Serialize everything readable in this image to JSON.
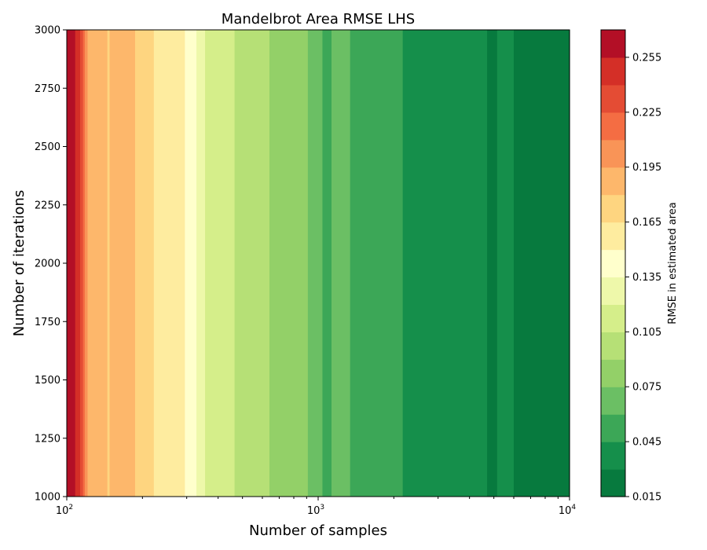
{
  "chart_data": {
    "type": "heatmap",
    "title": "Mandelbrot Area RMSE LHS",
    "xlabel": "Number of samples",
    "ylabel": "Number of iterations",
    "xscale": "log",
    "xlim": [
      100,
      10000
    ],
    "ylim": [
      1000,
      3000
    ],
    "x_ticks": [
      {
        "value": 100,
        "base": "10",
        "exp": "2"
      },
      {
        "value": 1000,
        "base": "10",
        "exp": "3"
      },
      {
        "value": 10000,
        "base": "10",
        "exp": "4"
      }
    ],
    "y_ticks": [
      1000,
      1250,
      1500,
      1750,
      2000,
      2250,
      2500,
      2750,
      3000
    ],
    "y_tick_labels": [
      "1000",
      "1250",
      "1500",
      "1750",
      "2000",
      "2250",
      "2500",
      "2750",
      "3000"
    ],
    "colorbar": {
      "label": "RMSE in estimated area",
      "min": 0.015,
      "max": 0.27,
      "levels": [
        0.015,
        0.03,
        0.045,
        0.06,
        0.075,
        0.09,
        0.105,
        0.12,
        0.135,
        0.15,
        0.165,
        0.18,
        0.195,
        0.21,
        0.225,
        0.24,
        0.255,
        0.27
      ],
      "ticks": [
        0.015,
        0.045,
        0.075,
        0.105,
        0.135,
        0.165,
        0.195,
        0.225,
        0.255
      ],
      "tick_labels": [
        "0.015",
        "0.045",
        "0.075",
        "0.105",
        "0.135",
        "0.165",
        "0.195",
        "0.225",
        "0.255"
      ],
      "colors": [
        "#077a3e",
        "#158f4b",
        "#3ca757",
        "#6bbf64",
        "#93d068",
        "#b6e076",
        "#d5ee8a",
        "#eef8aa",
        "#ffffcc",
        "#feec9f",
        "#fed580",
        "#fdb76b",
        "#f99457",
        "#f46d43",
        "#e44c34",
        "#d42f27",
        "#b30f26"
      ]
    },
    "bands": [
      {
        "x0": 100,
        "x1": 108,
        "level": 16
      },
      {
        "x0": 108,
        "x1": 113,
        "level": 15
      },
      {
        "x0": 113,
        "x1": 116,
        "level": 14
      },
      {
        "x0": 116,
        "x1": 118,
        "level": 13
      },
      {
        "x0": 118,
        "x1": 121,
        "level": 12
      },
      {
        "x0": 121,
        "x1": 145,
        "level": 11
      },
      {
        "x0": 145,
        "x1": 148,
        "level": 10
      },
      {
        "x0": 148,
        "x1": 187,
        "level": 11
      },
      {
        "x0": 187,
        "x1": 222,
        "level": 10
      },
      {
        "x0": 222,
        "x1": 295,
        "level": 9
      },
      {
        "x0": 295,
        "x1": 328,
        "level": 8
      },
      {
        "x0": 328,
        "x1": 355,
        "level": 7
      },
      {
        "x0": 355,
        "x1": 465,
        "level": 6
      },
      {
        "x0": 465,
        "x1": 640,
        "level": 5
      },
      {
        "x0": 640,
        "x1": 910,
        "level": 4
      },
      {
        "x0": 910,
        "x1": 1040,
        "level": 3
      },
      {
        "x0": 1040,
        "x1": 1130,
        "level": 2
      },
      {
        "x0": 1130,
        "x1": 1340,
        "level": 3
      },
      {
        "x0": 1340,
        "x1": 2170,
        "level": 2
      },
      {
        "x0": 2170,
        "x1": 4700,
        "level": 1
      },
      {
        "x0": 4700,
        "x1": 5150,
        "level": 0
      },
      {
        "x0": 5150,
        "x1": 6000,
        "level": 1
      },
      {
        "x0": 6000,
        "x1": 10000,
        "level": 0
      }
    ]
  }
}
